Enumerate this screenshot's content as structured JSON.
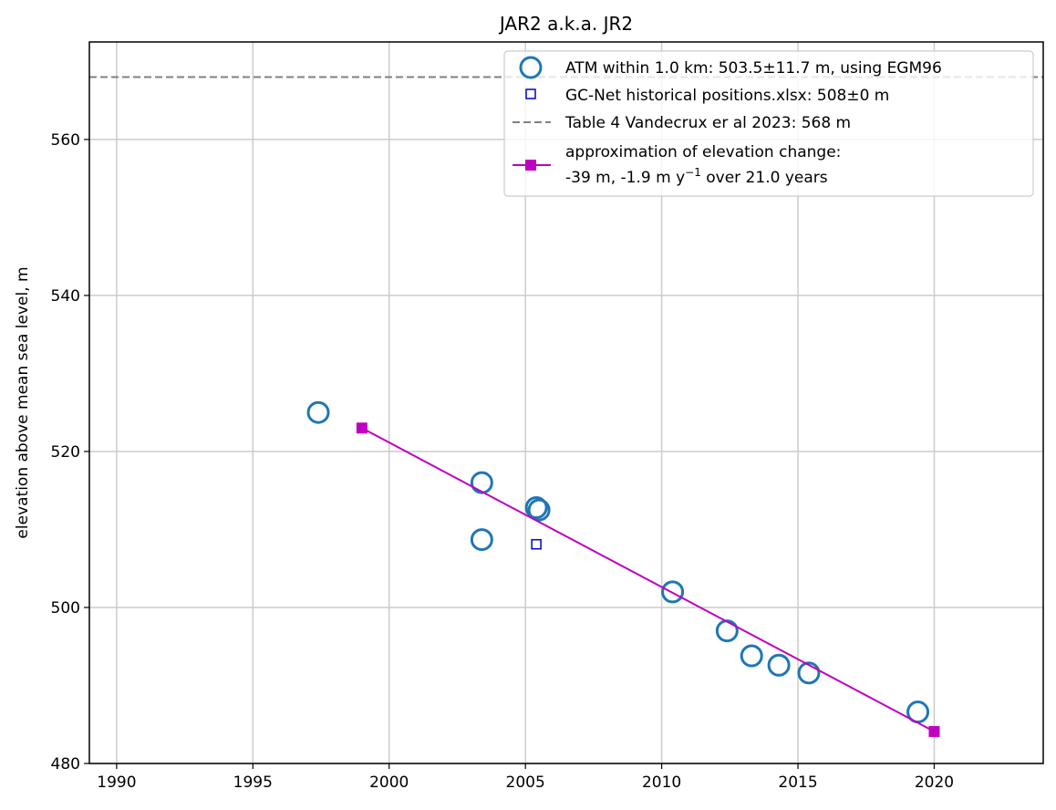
{
  "chart_data": {
    "type": "scatter",
    "title": "JAR2 a.k.a. JR2",
    "xlabel": "",
    "ylabel": "elevation above mean sea level, m",
    "xlim": [
      1989,
      2024
    ],
    "ylim": [
      480,
      572.5
    ],
    "xticks": [
      1990,
      1995,
      2000,
      2005,
      2010,
      2015,
      2020
    ],
    "yticks": [
      480,
      500,
      520,
      540,
      560
    ],
    "grid": true,
    "legend_position": "upper-right",
    "series": [
      {
        "name": "ATM within 1.0 km: 503.5±11.7 m, using EGM96",
        "kind": "scatter",
        "marker": "circle-open",
        "color": "#1f77b4",
        "x": [
          1997.4,
          2003.4,
          2003.4,
          2005.4,
          2005.5,
          2010.4,
          2012.4,
          2013.3,
          2014.3,
          2015.4,
          2019.4
        ],
        "y": [
          525.0,
          516.0,
          508.7,
          512.8,
          512.5,
          502.0,
          497.0,
          493.8,
          492.6,
          491.6,
          486.6
        ]
      },
      {
        "name": "GC-Net historical positions.xlsx: 508±0 m",
        "kind": "scatter",
        "marker": "square-open",
        "color": "#0000cc",
        "x": [
          2005.4
        ],
        "y": [
          508.1
        ]
      },
      {
        "name": "Table 4 Vandecrux er al 2023: 568 m",
        "kind": "hline",
        "style": "dashed",
        "color": "#808080",
        "y": 568
      },
      {
        "name_lines": [
          "approximation of elevation change:",
          "-39 m, -1.9 m y",
          "−1",
          " over 21.0 years"
        ],
        "kind": "line",
        "marker": "square-filled",
        "color": "#bf00bf",
        "x": [
          1999.0,
          2020.0
        ],
        "y": [
          523.0,
          484.1
        ]
      }
    ]
  }
}
